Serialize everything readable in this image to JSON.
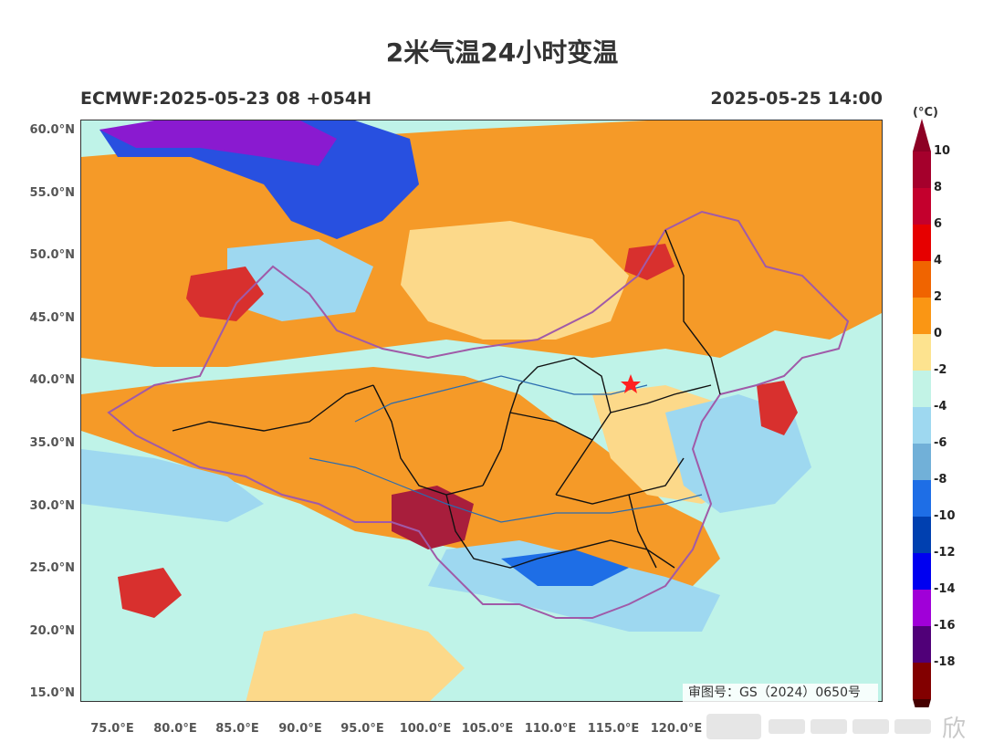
{
  "title": "2米气温24小时变温",
  "model_run": "ECMWF:2025-05-23 08 +054H",
  "valid_time": "2025-05-25 14:00",
  "unit": "(°C)",
  "lat_labels": [
    "60.0°N",
    "55.0°N",
    "50.0°N",
    "45.0°N",
    "40.0°N",
    "35.0°N",
    "30.0°N",
    "25.0°N",
    "20.0°N",
    "15.0°N"
  ],
  "lon_labels": [
    "75.0°E",
    "80.0°E",
    "85.0°E",
    "90.0°E",
    "95.0°E",
    "100.0°E",
    "105.0°E",
    "110.0°E",
    "115.0°E",
    "120.0°E"
  ],
  "colorbar": {
    "labels": [
      "10",
      "8",
      "6",
      "4",
      "2",
      "0",
      "-2",
      "-4",
      "-6",
      "-8",
      "-10",
      "-12",
      "-14",
      "-16",
      "-18"
    ],
    "colors": [
      "#a5002c",
      "#c4002d",
      "#e60000",
      "#f06400",
      "#fa9614",
      "#fde38f",
      "#c2f3e6",
      "#9ed8f0",
      "#71b0d8",
      "#1e6ee6",
      "#0040b0",
      "#0000f0",
      "#a000d8",
      "#500078",
      "#820000"
    ],
    "top_color": "#8c0024",
    "bottom_color": "#460000"
  },
  "map_colors": {
    "cold_purple": "#8a1ad0",
    "cold_blue": "#2850e0",
    "light_blue": "#9ed8f0",
    "orange": "#f59a28",
    "light_orange": "#fcd98a",
    "red": "#d8302e",
    "deep_red": "#a81e3c",
    "ocean": "#bff3e8",
    "border_purple": "#a05aa8",
    "province_black": "#111111",
    "river_blue": "#2a6cb0",
    "capital_star": "#ff2020"
  },
  "capital_marker": "star-icon",
  "approval_number": "审图号：GS（2024）0650号",
  "watermark": "欣"
}
